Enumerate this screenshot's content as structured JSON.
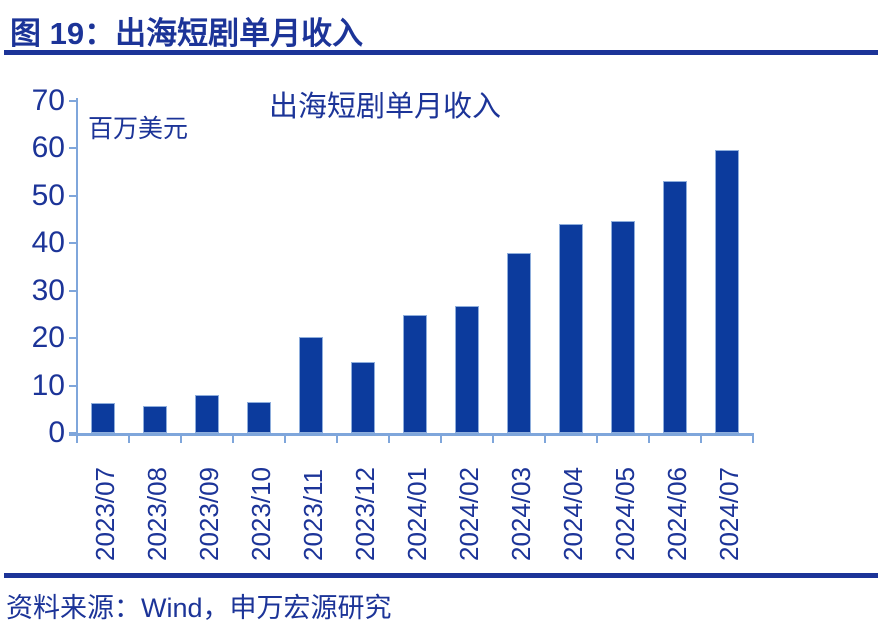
{
  "header": {
    "title": "图 19：出海短剧单月收入"
  },
  "chart": {
    "title": "出海短剧单月收入",
    "unit_label": "百万美元"
  },
  "chart_data": {
    "type": "bar",
    "title": "出海短剧单月收入",
    "ylabel": "百万美元",
    "xlabel": "",
    "categories": [
      "2023/07",
      "2023/08",
      "2023/09",
      "2023/10",
      "2023/11",
      "2023/12",
      "2024/01",
      "2024/02",
      "2024/03",
      "2024/04",
      "2024/05",
      "2024/06",
      "2024/07"
    ],
    "values": [
      6.3,
      5.6,
      8.0,
      6.5,
      20.2,
      15.0,
      24.8,
      26.7,
      38.0,
      44.1,
      44.7,
      53.0,
      59.6
    ],
    "ylim": [
      0,
      70
    ],
    "yticks": [
      0,
      10,
      20,
      30,
      40,
      50,
      60,
      70
    ],
    "grid": false,
    "legend": "none",
    "bar_color": "#0C3B9D",
    "axis_color": "#7FA6DB",
    "label_color": "#1C3498"
  },
  "footer": {
    "source": "资料来源：Wind，申万宏源研究"
  },
  "colors": {
    "navy": "#1C3498",
    "bar_blue": "#0C3B9D",
    "axis_light_blue": "#7FA6DB",
    "background": "#FFFFFF"
  }
}
